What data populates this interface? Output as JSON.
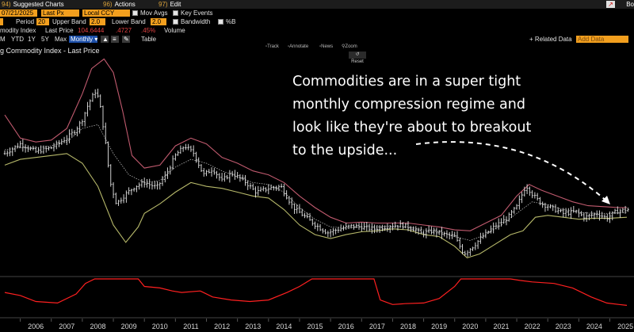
{
  "header": {
    "menu": [
      {
        "num": "94)",
        "label": "Suggested Charts"
      },
      {
        "num": "96)",
        "label": "Actions"
      },
      {
        "num": "97)",
        "label": "Edit"
      }
    ],
    "right_label": "Bo",
    "export_icon": "export-icon"
  },
  "controls": {
    "end_date": "07/21/2025",
    "price_field": "Last Px",
    "currency": "Local CCY",
    "mov_avgs_label": "Mov Avgs",
    "key_events_label": "Key Events",
    "period_label": "Period",
    "period_value": "20",
    "upper_band_label": "Upper Band",
    "upper_band_value": "2.0",
    "lower_band_label": "Lower Band",
    "lower_band_value": "2.0",
    "bandwidth_label": "Bandwidth",
    "pctb_label": "%B",
    "legend_index": "modity Index",
    "legend_last_price_label": "Last Price",
    "legend_last_price_value": "104.6444",
    "legend_change": ".4727",
    "legend_pct": ".45%",
    "legend_volume": "Volume",
    "ranges": [
      "M",
      "YTD",
      "1Y",
      "5Y",
      "Max"
    ],
    "frequency": "Monthly",
    "table_label": "Table",
    "related_data": "+ Related Data",
    "add_data": "Add Data"
  },
  "toolbar": {
    "track": "Track",
    "annotate": "Annotate",
    "news": "News",
    "zoom": "Zoom",
    "reset": "Reset"
  },
  "chart_title": "g Commodity Index - Last Price",
  "annotation": [
    "Commodities are in a super tight",
    "monthly compression regime and",
    "look like they're about to breakout",
    "to the upside..."
  ],
  "colors": {
    "price": "#e6e6e6",
    "upper_band": "#c05a6e",
    "lower_band": "#b6b86a",
    "middle_band": "#b0b0b0",
    "bandwidth": "#ff2020",
    "accent": "#f29f1e"
  },
  "chart_data": {
    "type": "line",
    "x_label_years": [
      "2006",
      "2007",
      "2008",
      "2009",
      "2010",
      "2011",
      "2012",
      "2013",
      "2014",
      "2015",
      "2016",
      "2017",
      "2018",
      "2019",
      "2020",
      "2021",
      "2022",
      "2023",
      "2024",
      "2025"
    ],
    "x_range": [
      2005.5,
      2025.6
    ],
    "y_range": [
      50,
      270
    ],
    "series": [
      {
        "key": "price",
        "points": [
          [
            2005.5,
            170
          ],
          [
            2006.0,
            180
          ],
          [
            2006.5,
            172
          ],
          [
            2007.0,
            176
          ],
          [
            2007.5,
            186
          ],
          [
            2007.8,
            195
          ],
          [
            2008.0,
            205
          ],
          [
            2008.2,
            222
          ],
          [
            2008.45,
            236
          ],
          [
            2008.6,
            215
          ],
          [
            2008.75,
            180
          ],
          [
            2008.9,
            140
          ],
          [
            2009.1,
            118
          ],
          [
            2009.4,
            128
          ],
          [
            2009.7,
            136
          ],
          [
            2010.0,
            140
          ],
          [
            2010.4,
            135
          ],
          [
            2010.7,
            148
          ],
          [
            2011.0,
            168
          ],
          [
            2011.3,
            178
          ],
          [
            2011.6,
            170
          ],
          [
            2011.9,
            148
          ],
          [
            2012.2,
            154
          ],
          [
            2012.5,
            142
          ],
          [
            2012.8,
            150
          ],
          [
            2013.2,
            142
          ],
          [
            2013.6,
            130
          ],
          [
            2014.0,
            134
          ],
          [
            2014.4,
            136
          ],
          [
            2014.8,
            114
          ],
          [
            2015.2,
            104
          ],
          [
            2015.6,
            94
          ],
          [
            2015.9,
            88
          ],
          [
            2016.3,
            92
          ],
          [
            2016.7,
            95
          ],
          [
            2017.0,
            94
          ],
          [
            2017.4,
            92
          ],
          [
            2017.9,
            95
          ],
          [
            2018.3,
            96
          ],
          [
            2018.7,
            92
          ],
          [
            2018.9,
            87
          ],
          [
            2019.3,
            90
          ],
          [
            2019.7,
            86
          ],
          [
            2020.0,
            84
          ],
          [
            2020.3,
            66
          ],
          [
            2020.6,
            74
          ],
          [
            2020.9,
            84
          ],
          [
            2021.3,
            95
          ],
          [
            2021.7,
            103
          ],
          [
            2022.0,
            115
          ],
          [
            2022.3,
            137
          ],
          [
            2022.5,
            128
          ],
          [
            2022.8,
            118
          ],
          [
            2023.1,
            114
          ],
          [
            2023.5,
            108
          ],
          [
            2023.9,
            110
          ],
          [
            2024.2,
            104
          ],
          [
            2024.6,
            108
          ],
          [
            2024.9,
            103
          ],
          [
            2025.2,
            110
          ],
          [
            2025.55,
            112
          ]
        ]
      },
      {
        "key": "upper_band",
        "points": [
          [
            2005.5,
            210
          ],
          [
            2006.0,
            186
          ],
          [
            2006.5,
            182
          ],
          [
            2007.0,
            184
          ],
          [
            2007.5,
            196
          ],
          [
            2008.0,
            232
          ],
          [
            2008.3,
            258
          ],
          [
            2008.7,
            268
          ],
          [
            2009.0,
            254
          ],
          [
            2009.3,
            214
          ],
          [
            2009.6,
            168
          ],
          [
            2010.0,
            155
          ],
          [
            2010.5,
            158
          ],
          [
            2011.0,
            178
          ],
          [
            2011.5,
            186
          ],
          [
            2012.0,
            180
          ],
          [
            2012.5,
            166
          ],
          [
            2013.0,
            160
          ],
          [
            2013.5,
            152
          ],
          [
            2014.0,
            148
          ],
          [
            2014.5,
            140
          ],
          [
            2015.0,
            126
          ],
          [
            2015.5,
            114
          ],
          [
            2016.0,
            104
          ],
          [
            2016.5,
            98
          ],
          [
            2017.0,
            99
          ],
          [
            2017.5,
            98
          ],
          [
            2018.0,
            98
          ],
          [
            2018.5,
            98
          ],
          [
            2019.0,
            96
          ],
          [
            2019.5,
            94
          ],
          [
            2020.0,
            91
          ],
          [
            2020.5,
            90
          ],
          [
            2021.0,
            98
          ],
          [
            2021.5,
            106
          ],
          [
            2022.0,
            126
          ],
          [
            2022.4,
            138
          ],
          [
            2022.8,
            132
          ],
          [
            2023.3,
            126
          ],
          [
            2023.8,
            120
          ],
          [
            2024.3,
            116
          ],
          [
            2024.8,
            115
          ],
          [
            2025.3,
            114
          ],
          [
            2025.55,
            114
          ]
        ]
      },
      {
        "key": "middle_band",
        "points": [
          [
            2005.5,
            174
          ],
          [
            2006.0,
            176
          ],
          [
            2006.5,
            176
          ],
          [
            2007.0,
            178
          ],
          [
            2007.5,
            182
          ],
          [
            2008.0,
            196
          ],
          [
            2008.5,
            200
          ],
          [
            2009.0,
            170
          ],
          [
            2009.5,
            148
          ],
          [
            2010.0,
            140
          ],
          [
            2010.5,
            142
          ],
          [
            2011.0,
            156
          ],
          [
            2011.5,
            164
          ],
          [
            2012.0,
            160
          ],
          [
            2012.5,
            152
          ],
          [
            2013.0,
            146
          ],
          [
            2013.5,
            140
          ],
          [
            2014.0,
            138
          ],
          [
            2014.5,
            130
          ],
          [
            2015.0,
            114
          ],
          [
            2015.5,
            102
          ],
          [
            2016.0,
            94
          ],
          [
            2016.5,
            93
          ],
          [
            2017.0,
            94
          ],
          [
            2017.5,
            94
          ],
          [
            2018.0,
            95
          ],
          [
            2018.5,
            94
          ],
          [
            2019.0,
            91
          ],
          [
            2019.5,
            89
          ],
          [
            2020.0,
            84
          ],
          [
            2020.5,
            80
          ],
          [
            2021.0,
            86
          ],
          [
            2021.5,
            96
          ],
          [
            2022.0,
            108
          ],
          [
            2022.5,
            120
          ],
          [
            2023.0,
            117
          ],
          [
            2023.5,
            112
          ],
          [
            2024.0,
            109
          ],
          [
            2024.5,
            108
          ],
          [
            2025.0,
            108
          ],
          [
            2025.55,
            109
          ]
        ]
      },
      {
        "key": "lower_band",
        "points": [
          [
            2005.5,
            158
          ],
          [
            2006.0,
            164
          ],
          [
            2006.5,
            166
          ],
          [
            2007.0,
            168
          ],
          [
            2007.5,
            170
          ],
          [
            2008.0,
            160
          ],
          [
            2008.5,
            136
          ],
          [
            2009.0,
            96
          ],
          [
            2009.4,
            78
          ],
          [
            2009.8,
            94
          ],
          [
            2010.0,
            108
          ],
          [
            2010.5,
            118
          ],
          [
            2011.0,
            130
          ],
          [
            2011.5,
            140
          ],
          [
            2012.0,
            136
          ],
          [
            2012.5,
            134
          ],
          [
            2013.0,
            130
          ],
          [
            2013.5,
            126
          ],
          [
            2014.0,
            124
          ],
          [
            2014.5,
            112
          ],
          [
            2015.0,
            96
          ],
          [
            2015.5,
            86
          ],
          [
            2016.0,
            82
          ],
          [
            2016.5,
            86
          ],
          [
            2017.0,
            89
          ],
          [
            2017.5,
            90
          ],
          [
            2018.0,
            92
          ],
          [
            2018.5,
            91
          ],
          [
            2019.0,
            86
          ],
          [
            2019.5,
            84
          ],
          [
            2020.0,
            74
          ],
          [
            2020.4,
            62
          ],
          [
            2020.8,
            66
          ],
          [
            2021.3,
            76
          ],
          [
            2021.8,
            86
          ],
          [
            2022.2,
            90
          ],
          [
            2022.6,
            104
          ],
          [
            2023.0,
            106
          ],
          [
            2023.5,
            104
          ],
          [
            2024.0,
            102
          ],
          [
            2024.5,
            103
          ],
          [
            2025.0,
            103
          ],
          [
            2025.55,
            104
          ]
        ]
      }
    ],
    "bandwidth": {
      "y_range": [
        0,
        1
      ],
      "points": [
        [
          2005.5,
          0.55
        ],
        [
          2006.0,
          0.45
        ],
        [
          2006.5,
          0.25
        ],
        [
          2007.2,
          0.2
        ],
        [
          2007.8,
          0.5
        ],
        [
          2008.1,
          0.85
        ],
        [
          2008.4,
          1.0
        ],
        [
          2009.8,
          1.0
        ],
        [
          2010.0,
          0.75
        ],
        [
          2010.5,
          0.7
        ],
        [
          2010.9,
          0.6
        ],
        [
          2011.2,
          0.55
        ],
        [
          2011.8,
          0.6
        ],
        [
          2012.2,
          0.4
        ],
        [
          2012.8,
          0.3
        ],
        [
          2013.4,
          0.25
        ],
        [
          2014.0,
          0.3
        ],
        [
          2014.6,
          0.55
        ],
        [
          2015.0,
          0.75
        ],
        [
          2015.4,
          1.0
        ],
        [
          2017.4,
          1.0
        ],
        [
          2017.6,
          0.3
        ],
        [
          2018.0,
          0.15
        ],
        [
          2018.4,
          0.18
        ],
        [
          2019.0,
          0.2
        ],
        [
          2019.5,
          0.35
        ],
        [
          2020.0,
          0.75
        ],
        [
          2020.2,
          1.0
        ],
        [
          2021.8,
          1.0
        ],
        [
          2022.1,
          0.95
        ],
        [
          2022.5,
          0.9
        ],
        [
          2023.2,
          0.85
        ],
        [
          2023.8,
          0.7
        ],
        [
          2024.4,
          0.4
        ],
        [
          2024.9,
          0.2
        ],
        [
          2025.3,
          0.15
        ],
        [
          2025.55,
          0.12
        ]
      ]
    }
  }
}
